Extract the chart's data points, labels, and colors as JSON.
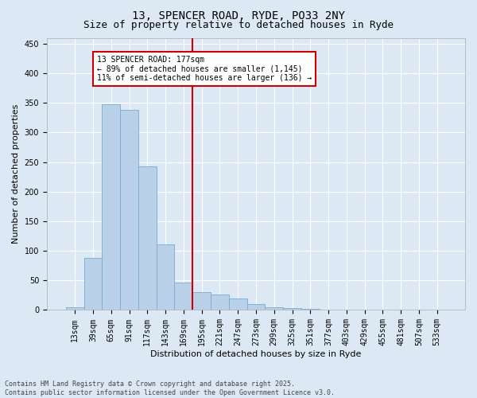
{
  "title_line1": "13, SPENCER ROAD, RYDE, PO33 2NY",
  "title_line2": "Size of property relative to detached houses in Ryde",
  "xlabel": "Distribution of detached houses by size in Ryde",
  "ylabel": "Number of detached properties",
  "annotation_line1": "13 SPENCER ROAD: 177sqm",
  "annotation_line2": "← 89% of detached houses are smaller (1,145)",
  "annotation_line3": "11% of semi-detached houses are larger (136) →",
  "footer_line1": "Contains HM Land Registry data © Crown copyright and database right 2025.",
  "footer_line2": "Contains public sector information licensed under the Open Government Licence v3.0.",
  "bar_color": "#b8d0e8",
  "bar_edge_color": "#7aabcf",
  "background_color": "#dce9f5",
  "plot_bg_color": "#dce9f5",
  "vline_color": "#cc0000",
  "annotation_box_color": "#ffffff",
  "annotation_box_edge": "#cc0000",
  "grid_color": "#ffffff",
  "categories": [
    "13sqm",
    "39sqm",
    "65sqm",
    "91sqm",
    "117sqm",
    "143sqm",
    "169sqm",
    "195sqm",
    "221sqm",
    "247sqm",
    "273sqm",
    "299sqm",
    "325sqm",
    "351sqm",
    "377sqm",
    "403sqm",
    "429sqm",
    "455sqm",
    "481sqm",
    "507sqm",
    "533sqm"
  ],
  "values": [
    5,
    88,
    348,
    338,
    243,
    111,
    47,
    30,
    26,
    20,
    10,
    5,
    3,
    2,
    1,
    1,
    0,
    0,
    1,
    0,
    1
  ],
  "vline_index": 6.5,
  "ylim": [
    0,
    460
  ],
  "yticks": [
    0,
    50,
    100,
    150,
    200,
    250,
    300,
    350,
    400,
    450
  ],
  "title_fontsize": 10,
  "subtitle_fontsize": 9,
  "axis_fontsize": 8,
  "tick_fontsize": 7,
  "annotation_fontsize": 7,
  "footer_fontsize": 6
}
